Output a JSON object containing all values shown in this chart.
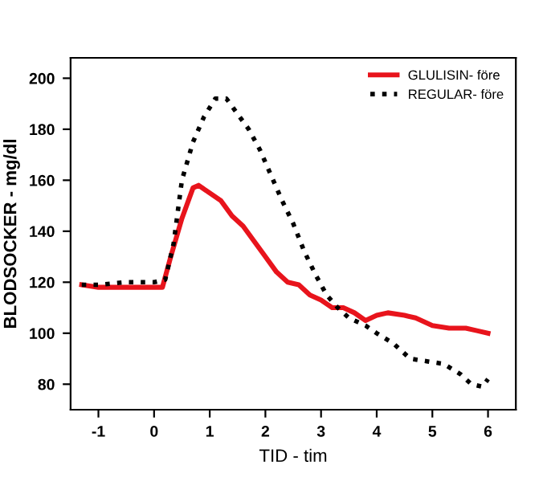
{
  "chart_data": {
    "type": "line",
    "xlabel": "TID - tim",
    "ylabel": "BLODSOCKER - mg/dl",
    "xlim": [
      -1.5,
      6.5
    ],
    "xticks": [
      -1,
      0,
      1,
      2,
      3,
      4,
      5,
      6
    ],
    "ylim": [
      70,
      208
    ],
    "yticks": [
      80,
      100,
      120,
      140,
      160,
      180,
      200
    ],
    "grid": false,
    "legend": "top right",
    "series": [
      {
        "name": "GLULISIN- före",
        "color": "#e8141c",
        "line_style": "solid",
        "x": [
          -1.3,
          -1,
          -0.5,
          0,
          0.15,
          0.3,
          0.5,
          0.7,
          0.8,
          1,
          1.2,
          1.4,
          1.6,
          1.8,
          2,
          2.2,
          2.4,
          2.6,
          2.8,
          3,
          3.2,
          3.4,
          3.6,
          3.8,
          4,
          4.2,
          4.5,
          4.7,
          5,
          5.3,
          5.6,
          5.8,
          6
        ],
        "values": [
          119,
          118,
          118,
          118,
          118,
          130,
          145,
          157,
          158,
          155,
          152,
          146,
          142,
          136,
          130,
          124,
          120,
          119,
          115,
          113,
          110,
          110,
          108,
          105,
          107,
          108,
          107,
          106,
          103,
          102,
          102,
          101,
          100
        ]
      },
      {
        "name": "REGULAR- före",
        "color": "#000000",
        "line_style": "dotted",
        "x": [
          -1.3,
          -1,
          -0.5,
          0,
          0.2,
          0.35,
          0.5,
          0.7,
          0.9,
          1.1,
          1.3,
          1.5,
          1.7,
          1.9,
          2.1,
          2.3,
          2.5,
          2.7,
          2.9,
          3.1,
          3.3,
          3.5,
          3.8,
          4,
          4.3,
          4.6,
          4.9,
          5.2,
          5.5,
          5.7,
          5.9,
          6
        ],
        "values": [
          119,
          119,
          120,
          120,
          121,
          135,
          160,
          175,
          185,
          192,
          192,
          186,
          180,
          172,
          162,
          152,
          143,
          132,
          123,
          115,
          110,
          106,
          103,
          100,
          96,
          90,
          89,
          88,
          84,
          80,
          79,
          82
        ]
      }
    ]
  }
}
